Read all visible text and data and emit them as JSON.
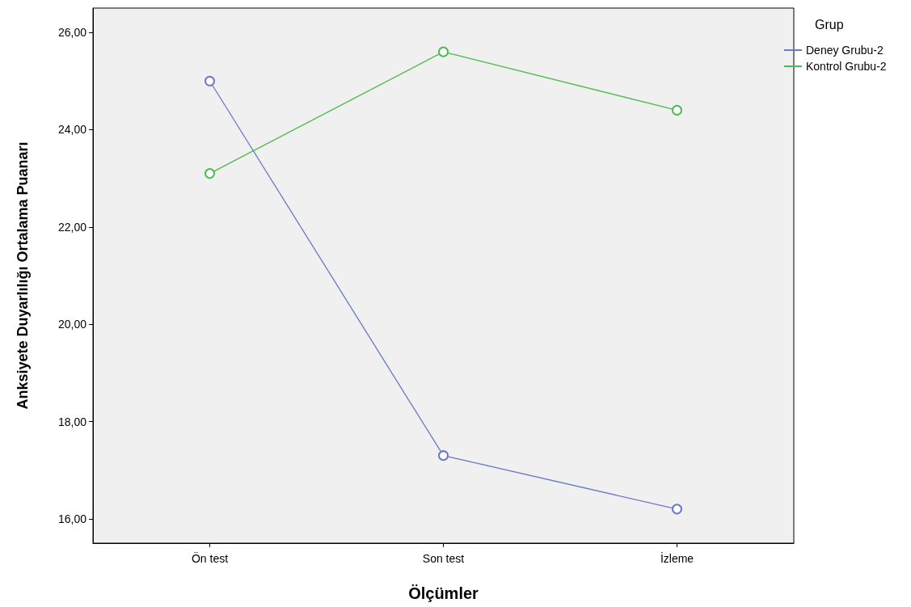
{
  "chart_data": {
    "type": "line",
    "xlabel": "Ölçümler",
    "ylabel": "Anksiyete Duyarlılığı Ortalama Puanarı",
    "legend_title": "Grup",
    "categories": [
      "Ön test",
      "Son test",
      "İzleme"
    ],
    "series": [
      {
        "name": "Deney Grubu-2",
        "color": "#6b78c8",
        "values": [
          25.0,
          17.3,
          16.2
        ]
      },
      {
        "name": "Kontrol Grubu-2",
        "color": "#4dbb4d",
        "values": [
          23.1,
          25.6,
          24.4
        ]
      }
    ],
    "ylim": [
      15.5,
      26.5
    ],
    "yticks": [
      {
        "value": 16,
        "label": "16,00"
      },
      {
        "value": 18,
        "label": "18,00"
      },
      {
        "value": 20,
        "label": "20,00"
      },
      {
        "value": 22,
        "label": "22,00"
      },
      {
        "value": 24,
        "label": "24,00"
      },
      {
        "value": 26,
        "label": "26,00"
      }
    ],
    "grid": false,
    "legend": "top right",
    "marker": "circle",
    "line_style": "solid"
  }
}
